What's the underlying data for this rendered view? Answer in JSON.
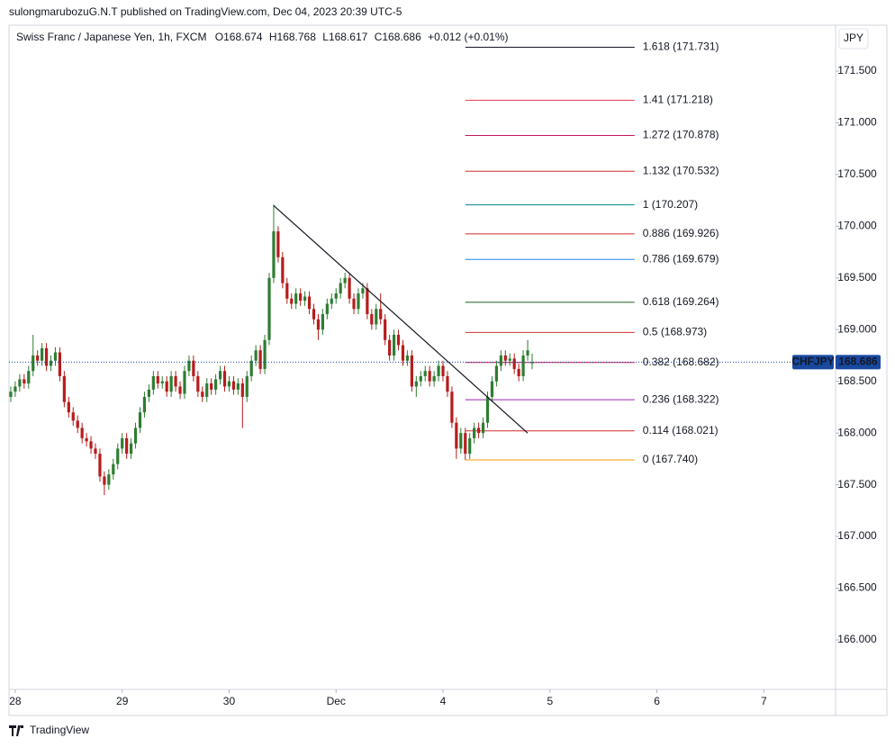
{
  "header": {
    "published": "sulongmarubozuG.N.T published on TradingView.com, Dec 04, 2023 20:39 UTC-5",
    "brand": "TradingView"
  },
  "legend": {
    "instrument": "Swiss Franc / Japanese Yen, 1h, FXCM",
    "keys": [
      "O",
      "H",
      "L",
      "C"
    ],
    "change": "+0.012 (+0.01%)"
  },
  "currency": "JPY",
  "chart_data": {
    "type": "candlestick",
    "symbol": "CHFJPY",
    "up_color": "#2e7d32",
    "down_color": "#b71c1c",
    "last_color": "#1848a0",
    "x": [
      0,
      1,
      2,
      3,
      4,
      5,
      6,
      7,
      8,
      9,
      10,
      11,
      12,
      13,
      14,
      15,
      16,
      17,
      18,
      19,
      20,
      21,
      22,
      23,
      24,
      25,
      26,
      27,
      28,
      29,
      30,
      31,
      32,
      33,
      34,
      35,
      36,
      37,
      38,
      39,
      40,
      41,
      42,
      43,
      44,
      45,
      46,
      47,
      48,
      49,
      50,
      51,
      52,
      53,
      54,
      55,
      56,
      57,
      58,
      59,
      60,
      61,
      62,
      63,
      64,
      65,
      66,
      67,
      68,
      69,
      70,
      71,
      72,
      73,
      74,
      75,
      76,
      77,
      78,
      79,
      80,
      81,
      82,
      83,
      84,
      85,
      86,
      87,
      88,
      89,
      90,
      91,
      92,
      93,
      94,
      95,
      96,
      97,
      98,
      99,
      100,
      101,
      102,
      103,
      104,
      105,
      106,
      107,
      108,
      109,
      110,
      111,
      112,
      113,
      114,
      115,
      116,
      117
    ],
    "open": [
      168.35,
      168.4,
      168.45,
      168.52,
      168.48,
      168.6,
      168.75,
      168.7,
      168.82,
      168.65,
      168.7,
      168.78,
      168.55,
      168.3,
      168.2,
      168.12,
      168.05,
      167.95,
      167.92,
      167.85,
      167.8,
      167.58,
      167.5,
      167.6,
      167.7,
      167.85,
      167.95,
      167.8,
      167.9,
      168.05,
      168.2,
      168.35,
      168.42,
      168.55,
      168.48,
      168.5,
      168.4,
      168.55,
      168.45,
      168.38,
      168.6,
      168.7,
      168.55,
      168.4,
      168.35,
      168.48,
      168.42,
      168.52,
      168.6,
      168.45,
      168.5,
      168.42,
      168.48,
      168.35,
      168.55,
      168.7,
      168.8,
      168.62,
      168.9,
      169.5,
      169.95,
      169.7,
      169.45,
      169.3,
      169.25,
      169.35,
      169.28,
      169.32,
      169.2,
      169.1,
      169.0,
      169.15,
      169.25,
      169.3,
      169.35,
      169.45,
      169.5,
      169.3,
      169.2,
      169.35,
      169.4,
      169.15,
      169.05,
      169.2,
      169.1,
      168.9,
      168.75,
      168.95,
      168.85,
      168.7,
      168.75,
      168.45,
      168.5,
      168.55,
      168.6,
      168.5,
      168.55,
      168.65,
      168.55,
      168.4,
      168.1,
      167.85,
      168.0,
      167.8,
      167.95,
      168.05,
      168.0,
      168.1,
      168.35,
      168.5,
      168.65,
      168.75,
      168.7,
      168.72,
      168.62,
      168.55,
      168.75,
      168.674
    ],
    "high": [
      168.45,
      168.5,
      168.57,
      168.57,
      168.65,
      168.95,
      168.8,
      168.87,
      168.87,
      168.75,
      168.83,
      168.83,
      168.6,
      168.35,
      168.25,
      168.17,
      168.1,
      168.0,
      167.97,
      167.9,
      167.85,
      167.63,
      167.65,
      167.75,
      167.9,
      168.0,
      168.0,
      167.95,
      168.1,
      168.25,
      168.4,
      168.47,
      168.6,
      168.6,
      168.55,
      168.55,
      168.6,
      168.6,
      168.5,
      168.65,
      168.75,
      168.75,
      168.6,
      168.45,
      168.53,
      168.53,
      168.57,
      168.65,
      168.65,
      168.55,
      168.55,
      168.53,
      168.53,
      168.6,
      168.75,
      168.85,
      168.85,
      168.95,
      169.55,
      170.21,
      170.0,
      169.75,
      169.5,
      169.35,
      169.4,
      169.4,
      169.37,
      169.37,
      169.25,
      169.15,
      169.2,
      169.3,
      169.35,
      169.4,
      169.5,
      169.55,
      169.55,
      169.35,
      169.4,
      169.45,
      169.45,
      169.2,
      169.25,
      169.35,
      169.15,
      168.95,
      169.0,
      169.0,
      168.9,
      168.8,
      168.8,
      168.55,
      168.6,
      168.65,
      168.65,
      168.6,
      168.7,
      168.7,
      168.6,
      168.45,
      168.15,
      168.05,
      168.05,
      168.0,
      168.1,
      168.1,
      168.15,
      168.4,
      168.55,
      168.7,
      168.8,
      168.8,
      168.77,
      168.77,
      168.67,
      168.8,
      168.9,
      168.768
    ],
    "low": [
      168.3,
      168.35,
      168.4,
      168.43,
      168.43,
      168.55,
      168.65,
      168.65,
      168.6,
      168.6,
      168.65,
      168.5,
      168.25,
      168.15,
      168.07,
      168.0,
      167.9,
      167.87,
      167.8,
      167.75,
      167.53,
      167.4,
      167.45,
      167.55,
      167.65,
      167.8,
      167.75,
      167.75,
      167.85,
      168.0,
      168.15,
      168.3,
      168.37,
      168.43,
      168.43,
      168.35,
      168.35,
      168.4,
      168.33,
      168.33,
      168.55,
      168.5,
      168.35,
      168.3,
      168.3,
      168.37,
      168.37,
      168.47,
      168.4,
      168.4,
      168.37,
      168.37,
      168.05,
      168.3,
      168.5,
      168.65,
      168.57,
      168.57,
      168.85,
      169.45,
      169.65,
      169.4,
      169.25,
      169.2,
      169.2,
      169.23,
      169.23,
      169.15,
      169.05,
      168.9,
      168.95,
      169.1,
      169.2,
      169.25,
      169.3,
      169.4,
      169.25,
      169.15,
      169.15,
      169.3,
      169.1,
      169.0,
      169.0,
      169.05,
      168.85,
      168.7,
      168.7,
      168.8,
      168.65,
      168.65,
      168.4,
      168.35,
      168.45,
      168.5,
      168.45,
      168.45,
      168.5,
      168.5,
      168.35,
      168.05,
      167.75,
      167.8,
      167.74,
      167.75,
      167.9,
      167.95,
      167.95,
      168.05,
      168.3,
      168.45,
      168.6,
      168.65,
      168.65,
      168.57,
      168.5,
      168.5,
      168.7,
      168.617
    ],
    "close": [
      168.4,
      168.45,
      168.52,
      168.48,
      168.6,
      168.75,
      168.7,
      168.82,
      168.65,
      168.7,
      168.78,
      168.55,
      168.3,
      168.2,
      168.12,
      168.05,
      167.95,
      167.92,
      167.85,
      167.8,
      167.58,
      167.5,
      167.6,
      167.7,
      167.85,
      167.95,
      167.8,
      167.9,
      168.05,
      168.2,
      168.35,
      168.42,
      168.55,
      168.48,
      168.5,
      168.4,
      168.55,
      168.45,
      168.38,
      168.6,
      168.7,
      168.55,
      168.4,
      168.35,
      168.48,
      168.42,
      168.52,
      168.6,
      168.45,
      168.5,
      168.42,
      168.48,
      168.35,
      168.55,
      168.7,
      168.8,
      168.62,
      168.9,
      169.5,
      169.95,
      169.7,
      169.45,
      169.3,
      169.25,
      169.35,
      169.28,
      169.32,
      169.2,
      169.1,
      169.0,
      169.15,
      169.25,
      169.3,
      169.35,
      169.45,
      169.5,
      169.3,
      169.2,
      169.35,
      169.4,
      169.15,
      169.05,
      169.2,
      169.1,
      168.9,
      168.75,
      168.95,
      168.85,
      168.7,
      168.75,
      168.45,
      168.5,
      168.55,
      168.6,
      168.5,
      168.55,
      168.65,
      168.55,
      168.4,
      168.1,
      167.85,
      168.0,
      167.8,
      167.95,
      168.05,
      168.0,
      168.1,
      168.35,
      168.5,
      168.65,
      168.75,
      168.7,
      168.72,
      168.62,
      168.55,
      168.75,
      168.8,
      168.686
    ],
    "xlim": [
      -0.4,
      185.1
    ],
    "ylim": [
      165.521,
      171.944
    ],
    "xticks": [
      {
        "value": 1,
        "label": "28"
      },
      {
        "value": 25,
        "label": "29"
      },
      {
        "value": 49,
        "label": "30"
      },
      {
        "value": 73,
        "label": "Dec"
      },
      {
        "value": 97,
        "label": "4"
      },
      {
        "value": 121,
        "label": "5"
      },
      {
        "value": 145,
        "label": "6"
      },
      {
        "value": 169,
        "label": "7"
      }
    ],
    "yticks": [
      {
        "value": 166,
        "label": "166.000"
      },
      {
        "value": 166.5,
        "label": "166.500"
      },
      {
        "value": 167,
        "label": "167.000"
      },
      {
        "value": 167.5,
        "label": "167.500"
      },
      {
        "value": 168,
        "label": "168.000"
      },
      {
        "value": 168.5,
        "label": "168.500"
      },
      {
        "value": 169,
        "label": "169.000"
      },
      {
        "value": 169.5,
        "label": "169.500"
      },
      {
        "value": 170,
        "label": "170.000"
      },
      {
        "value": 170.5,
        "label": "170.500"
      },
      {
        "value": 171,
        "label": "171.000"
      },
      {
        "value": 171.5,
        "label": "171.500"
      }
    ],
    "fib_xrange": [
      102,
      140
    ],
    "fib": [
      {
        "label": "1.618 (171.731)",
        "price": 171.731,
        "color": "#131722"
      },
      {
        "label": "1.41 (171.218)",
        "price": 171.218,
        "color": "#e53950"
      },
      {
        "label": "1.272 (170.878)",
        "price": 170.878,
        "color": "#c2185b"
      },
      {
        "label": "1.132 (170.532)",
        "price": 170.532,
        "color": "#d32f2f"
      },
      {
        "label": "1 (170.207)",
        "price": 170.207,
        "color": "#00838f"
      },
      {
        "label": "0.886 (169.926)",
        "price": 169.926,
        "color": "#d32f2f"
      },
      {
        "label": "0.786 (169.679)",
        "price": 169.679,
        "color": "#1e88e5"
      },
      {
        "label": "0.618 (169.264)",
        "price": 169.264,
        "color": "#1b5e20"
      },
      {
        "label": "0.5 (168.973)",
        "price": 168.973,
        "color": "#d32f2f"
      },
      {
        "label": "0.382 (168.682)",
        "price": 168.682,
        "color": "#c2185b"
      },
      {
        "label": "0.236 (168.322)",
        "price": 168.322,
        "color": "#9c27b0"
      },
      {
        "label": "0.114 (168.021)",
        "price": 168.021,
        "color": "#d32f2f"
      },
      {
        "label": "0 (167.740)",
        "price": 167.74,
        "color": "#f59b00"
      }
    ],
    "trendline": {
      "x": [
        59,
        116
      ],
      "y": [
        170.2,
        168.0
      ],
      "color": "#131722"
    }
  }
}
